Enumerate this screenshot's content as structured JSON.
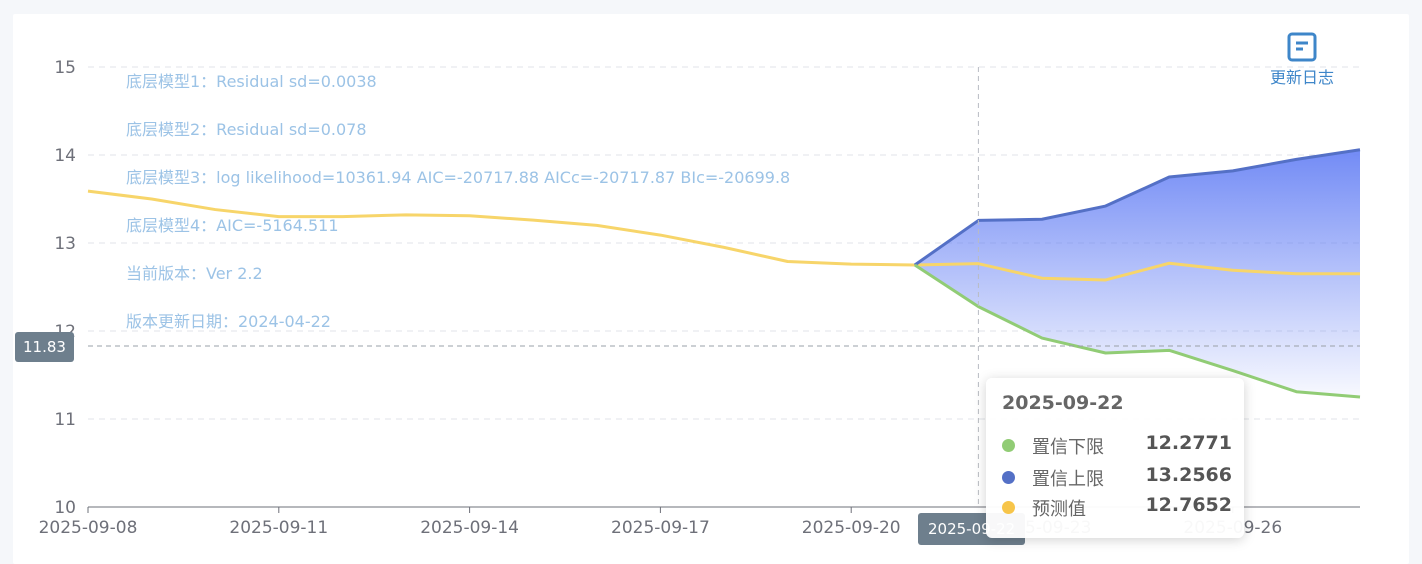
{
  "chart_data": {
    "type": "line",
    "x": [
      "2025-09-08",
      "2025-09-09",
      "2025-09-10",
      "2025-09-11",
      "2025-09-12",
      "2025-09-13",
      "2025-09-14",
      "2025-09-15",
      "2025-09-16",
      "2025-09-17",
      "2025-09-18",
      "2025-09-19",
      "2025-09-20",
      "2025-09-21",
      "2025-09-22",
      "2025-09-23",
      "2025-09-24",
      "2025-09-25",
      "2025-09-26",
      "2025-09-27",
      "2025-09-28"
    ],
    "x_tick_labels": [
      "2025-09-08",
      "2025-09-11",
      "2025-09-14",
      "2025-09-17",
      "2025-09-20",
      "2025-09-23",
      "2025-09-26"
    ],
    "y_ticks": [
      10,
      11,
      12,
      13,
      14,
      15
    ],
    "ylim": [
      10,
      15
    ],
    "grid": "horizontal dashed",
    "series": [
      {
        "name": "预测值",
        "color": "#f7d56a",
        "values": [
          13.59,
          13.5,
          13.38,
          13.3,
          13.3,
          13.32,
          13.31,
          13.26,
          13.2,
          13.09,
          12.95,
          12.79,
          12.76,
          12.75,
          12.7652,
          12.6,
          12.58,
          12.77,
          12.69,
          12.65,
          12.65
        ]
      },
      {
        "name": "置信上限",
        "color": "#5470c6",
        "values": [
          null,
          null,
          null,
          null,
          null,
          null,
          null,
          null,
          null,
          null,
          null,
          null,
          null,
          12.75,
          13.2566,
          13.27,
          13.42,
          13.75,
          13.82,
          13.95,
          14.06
        ]
      },
      {
        "name": "置信下限",
        "color": "#91cc75",
        "values": [
          null,
          null,
          null,
          null,
          null,
          null,
          null,
          null,
          null,
          null,
          null,
          null,
          null,
          12.75,
          12.2771,
          11.92,
          11.75,
          11.78,
          11.55,
          11.31,
          11.25
        ]
      }
    ],
    "band_fill": "#6b85f5",
    "crosshair": {
      "x": "2025-09-22",
      "y": 11.83,
      "y_label": "11.83",
      "x_label": "2025-09-22"
    }
  },
  "notes": [
    "底层模型1：Residual sd=0.0038",
    "底层模型2：Residual sd=0.078",
    "底层模型3：log likelihood=10361.94 AIC=-20717.88 AICc=-20717.87 BIc=-20699.8",
    "底层模型4：AIC=-5164.511",
    "当前版本：Ver 2.2",
    "版本更新日期：2024-04-22"
  ],
  "toolbox": {
    "update_log_label": "更新日志",
    "icon": "document-icon"
  },
  "tooltip": {
    "date": "2025-09-22",
    "rows": [
      {
        "name": "置信下限",
        "value": "12.2771",
        "color": "#91cc75"
      },
      {
        "name": "置信上限",
        "value": "13.2566",
        "color": "#5470c6"
      },
      {
        "name": "预测值",
        "value": "12.7652",
        "color": "#f7c54a"
      }
    ]
  }
}
